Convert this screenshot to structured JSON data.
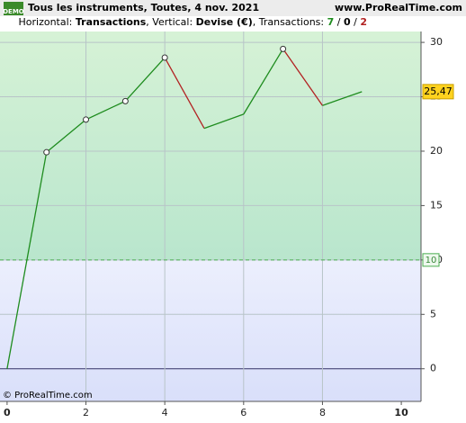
{
  "chart_data": {
    "type": "line",
    "badge": "DEMO",
    "title": "Tous les instruments, Toutes, 4 nov. 2021",
    "site": "www.ProRealTime.com",
    "subtitle": [
      "Horizontal: ",
      "Transactions",
      ", Vertical: ",
      "Devise (€)",
      ", Transactions: ",
      "7",
      " / ",
      "0",
      " / ",
      "2"
    ],
    "copyright": "© ProRealTime.com",
    "x": [
      0,
      1,
      2,
      3,
      4,
      5,
      6,
      7,
      8,
      9
    ],
    "series": [
      {
        "values": [
          0,
          19.9,
          22.9,
          24.6,
          28.6,
          22.1,
          23.4,
          29.4,
          24.2,
          25.47
        ],
        "value_labels": [
          null,
          null,
          null,
          null,
          null,
          null,
          null,
          null,
          null,
          "25,47"
        ],
        "up_color": "#1e8c1e",
        "down_color": "#b22222"
      }
    ],
    "threshold": 10,
    "xlim": [
      -0.18,
      10.5
    ],
    "xticks": [
      0,
      2,
      4,
      6,
      8,
      10
    ],
    "ylim": [
      -3,
      31
    ],
    "yticks": [
      0,
      5,
      10,
      15,
      20,
      25,
      30
    ],
    "grid": true
  }
}
